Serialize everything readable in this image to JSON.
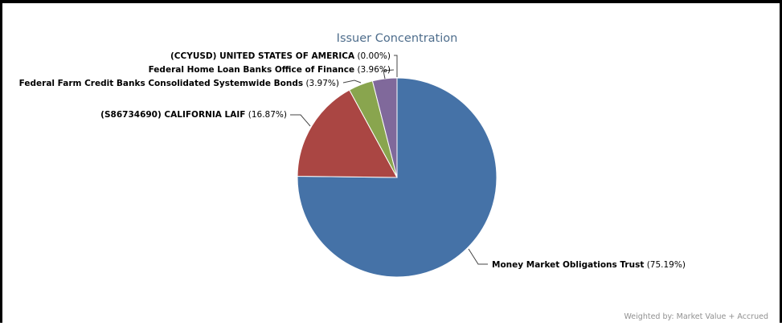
{
  "chart_data": {
    "type": "pie",
    "title": "Issuer Concentration",
    "footnote": "Weighted by: Market Value + Accrued",
    "slices": [
      {
        "name": "Money Market Obligations Trust",
        "pct_label": "(75.19%)",
        "value": 75.19,
        "color": "#4572a7"
      },
      {
        "name": "(S86734690) CALIFORNIA LAIF",
        "pct_label": "(16.87%)",
        "value": 16.87,
        "color": "#aa4643"
      },
      {
        "name": "Federal Farm Credit Banks Consolidated Systemwide Bonds",
        "pct_label": "(3.97%)",
        "value": 3.97,
        "color": "#89a54e"
      },
      {
        "name": "Federal Home Loan Banks Office of Finance",
        "pct_label": "(3.96%)",
        "value": 3.96,
        "color": "#80699b"
      },
      {
        "name": "(CCYUSD) UNITED STATES OF AMERICA",
        "pct_label": "(0.00%)",
        "value": 0.0,
        "color": "#3d96ae"
      }
    ]
  }
}
